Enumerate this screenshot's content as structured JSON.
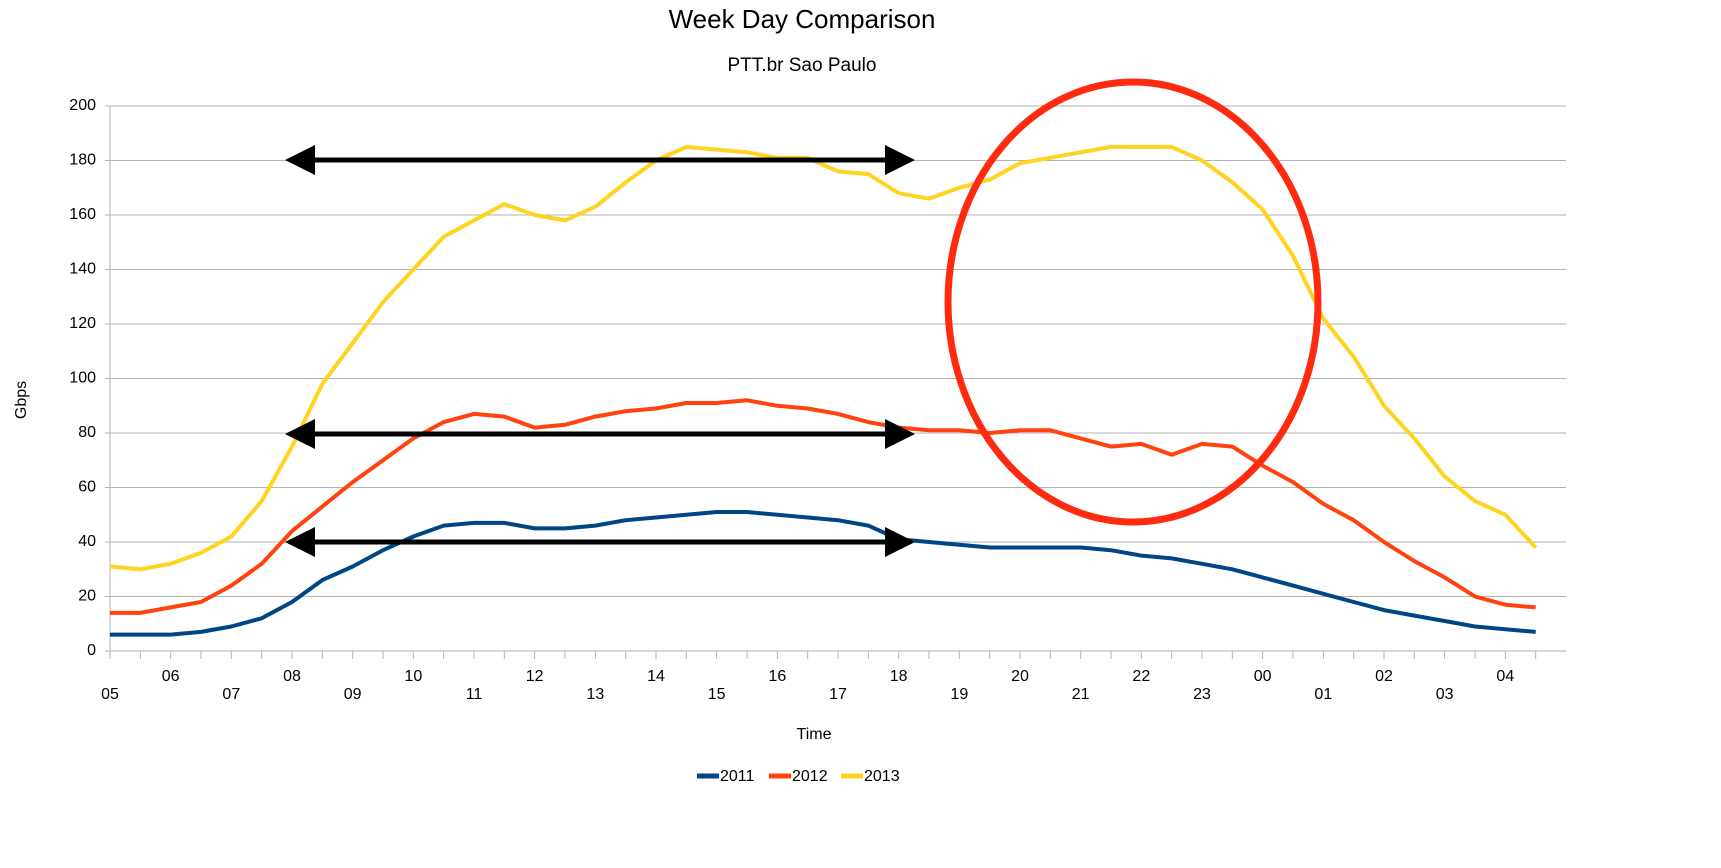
{
  "chart_data": {
    "type": "line",
    "title": "Week Day Comparison",
    "subtitle": "PTT.br Sao Paulo",
    "x_label": "Time",
    "y_label": "Gbps",
    "categories": [
      "05",
      null,
      "06",
      null,
      "07",
      null,
      "08",
      null,
      "09",
      null,
      "10",
      null,
      "11",
      null,
      "12",
      null,
      "13",
      null,
      "14",
      null,
      "15",
      null,
      "16",
      null,
      "17",
      null,
      "18",
      null,
      "19",
      null,
      "20",
      null,
      "21",
      null,
      "22",
      null,
      "23",
      null,
      "00",
      null,
      "01",
      null,
      "02",
      null,
      "03",
      null,
      "04",
      null
    ],
    "series": [
      {
        "name": "2011",
        "color": "#004586",
        "values": [
          6,
          6,
          6,
          7,
          9,
          12,
          18,
          26,
          31,
          37,
          42,
          46,
          47,
          47,
          45,
          45,
          46,
          48,
          49,
          50,
          51,
          51,
          50,
          49,
          48,
          46,
          41,
          40,
          39,
          38,
          38,
          38,
          38,
          37,
          35,
          34,
          32,
          30,
          27,
          24,
          21,
          18,
          15,
          13,
          11,
          9,
          8,
          7
        ]
      },
      {
        "name": "2012",
        "color": "#ff420e",
        "values": [
          14,
          14,
          16,
          18,
          24,
          32,
          44,
          53,
          62,
          70,
          78,
          84,
          87,
          86,
          82,
          83,
          86,
          88,
          89,
          91,
          91,
          92,
          90,
          89,
          87,
          84,
          82,
          81,
          81,
          80,
          81,
          81,
          78,
          75,
          76,
          72,
          76,
          75,
          68,
          62,
          54,
          48,
          40,
          33,
          27,
          20,
          17,
          16
        ]
      },
      {
        "name": "2013",
        "color": "#ffd320",
        "values": [
          31,
          30,
          32,
          36,
          42,
          55,
          75,
          98,
          113,
          128,
          140,
          152,
          158,
          164,
          160,
          158,
          163,
          172,
          180,
          185,
          184,
          183,
          181,
          181,
          176,
          175,
          168,
          166,
          170,
          173,
          179,
          181,
          183,
          185,
          185,
          185,
          180,
          172,
          162,
          145,
          122,
          108,
          90,
          78,
          64,
          55,
          50,
          38
        ]
      }
    ],
    "ylim": [
      0,
      200
    ],
    "yticks": [
      0,
      20,
      40,
      60,
      80,
      100,
      120,
      140,
      160,
      180,
      200
    ],
    "grid": true,
    "legend": "bottom"
  }
}
